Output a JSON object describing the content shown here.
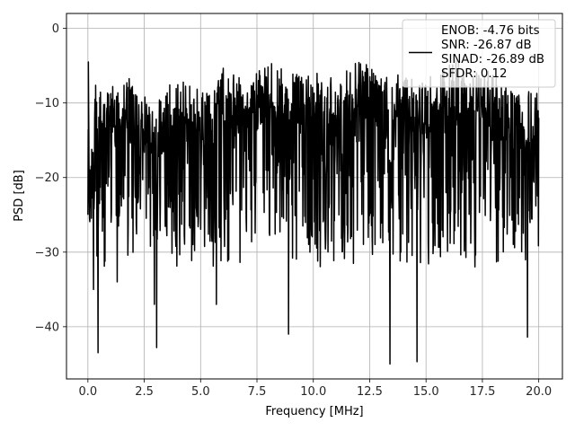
{
  "chart_data": {
    "type": "line",
    "title": "",
    "xlabel": "Frequency [MHz]",
    "ylabel": "PSD [dB]",
    "xlim": [
      -0.95,
      21.05
    ],
    "ylim": [
      -47,
      2
    ],
    "xticks": [
      0.0,
      2.5,
      5.0,
      7.5,
      10.0,
      12.5,
      15.0,
      17.5,
      20.0
    ],
    "xtick_labels": [
      "0.0",
      "2.5",
      "5.0",
      "7.5",
      "10.0",
      "12.5",
      "15.0",
      "17.5",
      "20.0"
    ],
    "yticks": [
      0,
      -10,
      -20,
      -30,
      -40
    ],
    "ytick_labels": [
      "0",
      "−10",
      "−20",
      "−30",
      "−40"
    ],
    "grid": true,
    "legend": {
      "placement": "top-right",
      "lines": [
        "ENOB: -4.76 bits",
        "SNR: -26.87 dB",
        "SINAD: -26.89 dB",
        "SFDR: 0.12"
      ]
    },
    "series": [
      {
        "color": "#000000",
        "x_range": [
          0.0,
          20.0
        ],
        "envelope_upper": [
          -4,
          -6,
          -3,
          -8,
          -4,
          -6,
          -3,
          -5,
          -2,
          -4,
          -3,
          -5,
          -2,
          -4,
          -3,
          -5,
          -2,
          -3,
          -4,
          -7,
          -6
        ],
        "typical_low": -24,
        "deep_nulls": [
          {
            "x": 0.45,
            "y": -43.5
          },
          {
            "x": 3.05,
            "y": -42.8
          },
          {
            "x": 8.9,
            "y": -41.0
          },
          {
            "x": 13.4,
            "y": -45.0
          },
          {
            "x": 14.6,
            "y": -44.7
          },
          {
            "x": 19.5,
            "y": -41.4
          },
          {
            "x": 2.95,
            "y": -37.0
          },
          {
            "x": 5.7,
            "y": -37.0
          },
          {
            "x": 0.25,
            "y": -35.0
          },
          {
            "x": 1.3,
            "y": -34.0
          }
        ]
      }
    ]
  },
  "colors": {
    "line": "#000000",
    "grid": "#b0b0b0",
    "axes": "#000000",
    "legend_bg": "#ffffff"
  }
}
